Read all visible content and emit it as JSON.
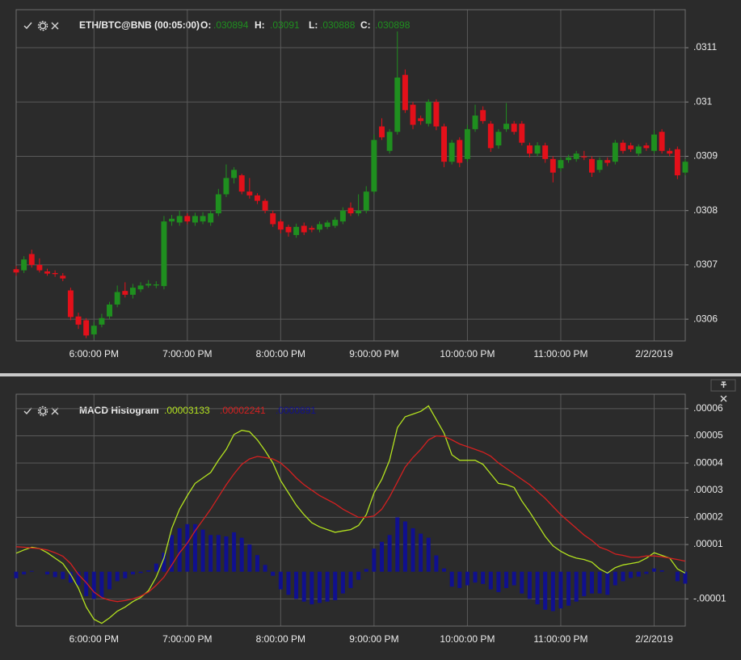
{
  "chart_data": [
    {
      "type": "candlestick",
      "title": "ETH/BTC@BNB (00:05:00)",
      "legend_items": [
        {
          "label": "O:",
          "value": ".030894"
        },
        {
          "label": "H:",
          "value": ".03091"
        },
        {
          "label": "L:",
          "value": ".030888"
        },
        {
          "label": "C:",
          "value": ".030898"
        }
      ],
      "categories": [
        null,
        null,
        null,
        null,
        null,
        null,
        null,
        null,
        null,
        null,
        "6:00:00 PM",
        null,
        null,
        null,
        null,
        null,
        null,
        null,
        null,
        null,
        null,
        null,
        "7:00:00 PM",
        null,
        null,
        null,
        null,
        null,
        null,
        null,
        null,
        null,
        null,
        null,
        "8:00:00 PM",
        null,
        null,
        null,
        null,
        null,
        null,
        null,
        null,
        null,
        null,
        null,
        "9:00:00 PM",
        null,
        null,
        null,
        null,
        null,
        null,
        null,
        null,
        null,
        null,
        null,
        "10:00:00 PM",
        null,
        null,
        null,
        null,
        null,
        null,
        null,
        null,
        null,
        null,
        null,
        "11:00:00 PM",
        null,
        null,
        null,
        null,
        null,
        null,
        null,
        null,
        null,
        null,
        null,
        "2/2/2019",
        null,
        null,
        null,
        null
      ],
      "open": [
        0.030692,
        0.03069,
        0.03072,
        0.0307,
        0.030688,
        0.030685,
        0.03068,
        0.030653,
        0.030605,
        0.030598,
        0.030572,
        0.03059,
        0.030605,
        0.030627,
        0.030652,
        0.030645,
        0.030655,
        0.030662,
        0.030662,
        0.030661,
        0.03078,
        0.030778,
        0.03079,
        0.030778,
        0.03078,
        0.030778,
        0.030795,
        0.03083,
        0.03086,
        0.030865,
        0.030835,
        0.030828,
        0.030818,
        0.030795,
        0.03078,
        0.03077,
        0.030755,
        0.030772,
        0.030768,
        0.030765,
        0.03077,
        0.030772,
        0.03078,
        0.030805,
        0.030795,
        0.0308,
        0.030835,
        0.030955,
        0.03091,
        0.030945,
        0.03105,
        0.030995,
        0.03097,
        0.03096,
        0.031,
        0.030955,
        0.03089,
        0.03093,
        0.030895,
        0.03095,
        0.030985,
        0.03096,
        0.03092,
        0.03095,
        0.03096,
        0.03096,
        0.03092,
        0.030905,
        0.03092,
        0.030895,
        0.030878,
        0.030893,
        0.030895,
        0.0309,
        0.030895,
        0.030875,
        0.030893,
        0.03089,
        0.030925,
        0.03092,
        0.030905,
        0.03092,
        0.03091,
        0.030945,
        0.03091,
        0.030913,
        0.03087
      ],
      "high": [
        0.030698,
        0.030716,
        0.030728,
        0.030712,
        0.030693,
        0.03069,
        0.030685,
        0.030658,
        0.030612,
        0.030602,
        0.030595,
        0.03061,
        0.030632,
        0.030662,
        0.030668,
        0.030665,
        0.030668,
        0.030672,
        0.03067,
        0.03079,
        0.030792,
        0.0308,
        0.030795,
        0.030796,
        0.030797,
        0.0308,
        0.03084,
        0.030885,
        0.03088,
        0.030868,
        0.03086,
        0.030832,
        0.030822,
        0.0308,
        0.030784,
        0.030774,
        0.030776,
        0.030778,
        0.030772,
        0.03078,
        0.030782,
        0.030788,
        0.030806,
        0.030815,
        0.03083,
        0.030845,
        0.03094,
        0.03097,
        0.03095,
        0.03113,
        0.03106,
        0.031,
        0.030975,
        0.031005,
        0.031005,
        0.03096,
        0.03093,
        0.030935,
        0.030958,
        0.030995,
        0.030992,
        0.030965,
        0.03095,
        0.030998,
        0.030965,
        0.030965,
        0.030925,
        0.030926,
        0.030925,
        0.0309,
        0.030898,
        0.030903,
        0.03091,
        0.03091,
        0.0309,
        0.030898,
        0.030898,
        0.03093,
        0.03093,
        0.030925,
        0.030922,
        0.030925,
        0.030948,
        0.03095,
        0.030915,
        0.030918,
        0.030895
      ],
      "low": [
        0.03068,
        0.030685,
        0.030695,
        0.030686,
        0.03068,
        0.030678,
        0.03067,
        0.030598,
        0.030582,
        0.030565,
        0.030565,
        0.030585,
        0.0306,
        0.030622,
        0.03064,
        0.030638,
        0.03065,
        0.030658,
        0.030657,
        0.030655,
        0.030772,
        0.030772,
        0.030775,
        0.030772,
        0.030775,
        0.030772,
        0.03079,
        0.030825,
        0.03085,
        0.03083,
        0.030822,
        0.030812,
        0.030795,
        0.03077,
        0.030758,
        0.030752,
        0.03075,
        0.030755,
        0.03076,
        0.03076,
        0.030766,
        0.030768,
        0.030775,
        0.03079,
        0.03079,
        0.030795,
        0.03083,
        0.03093,
        0.030905,
        0.03094,
        0.03098,
        0.03095,
        0.030958,
        0.030955,
        0.030948,
        0.03088,
        0.030885,
        0.03088,
        0.03089,
        0.030945,
        0.03096,
        0.030908,
        0.030914,
        0.030945,
        0.03094,
        0.03092,
        0.030898,
        0.0309,
        0.030888,
        0.030852,
        0.030872,
        0.030888,
        0.03089,
        0.030893,
        0.030862,
        0.03087,
        0.030882,
        0.030885,
        0.030905,
        0.030908,
        0.0309,
        0.03091,
        0.030905,
        0.030905,
        0.0309,
        0.030858,
        0.030865
      ],
      "close": [
        0.030686,
        0.03071,
        0.0307,
        0.03069,
        0.030684,
        0.030683,
        0.030675,
        0.030604,
        0.03059,
        0.03057,
        0.030588,
        0.030602,
        0.030627,
        0.03065,
        0.030645,
        0.030658,
        0.030662,
        0.030665,
        0.030664,
        0.03078,
        0.030785,
        0.03079,
        0.03078,
        0.03079,
        0.03079,
        0.030795,
        0.03083,
        0.03086,
        0.030875,
        0.030835,
        0.030828,
        0.030818,
        0.0308,
        0.030775,
        0.030765,
        0.03076,
        0.03077,
        0.03076,
        0.030765,
        0.030775,
        0.030778,
        0.030783,
        0.0308,
        0.030795,
        0.0308,
        0.030835,
        0.03093,
        0.030935,
        0.030945,
        0.031045,
        0.030985,
        0.030958,
        0.030965,
        0.031,
        0.030955,
        0.03089,
        0.030925,
        0.030888,
        0.03095,
        0.030975,
        0.030965,
        0.030915,
        0.030945,
        0.03096,
        0.030945,
        0.030925,
        0.030905,
        0.03092,
        0.030895,
        0.03087,
        0.030893,
        0.030898,
        0.030905,
        0.030898,
        0.03087,
        0.030893,
        0.030888,
        0.030925,
        0.03091,
        0.030913,
        0.030918,
        0.030915,
        0.03094,
        0.03091,
        0.030905,
        0.030865,
        0.03089
      ],
      "up_color": "#1f8f1f",
      "down_color": "#e3101a",
      "ylim": [
        0.03056,
        0.03117
      ],
      "yticks": [
        {
          "value": 0.0306,
          "label": ".0306"
        },
        {
          "value": 0.0307,
          "label": ".0307"
        },
        {
          "value": 0.0308,
          "label": ".0308"
        },
        {
          "value": 0.0309,
          "label": ".0309"
        },
        {
          "value": 0.031,
          "label": ".031"
        },
        {
          "value": 0.0311,
          "label": ".0311"
        }
      ],
      "grid": true
    },
    {
      "type": "macd",
      "title": "MACD Histogram",
      "categories": [
        null,
        null,
        null,
        null,
        null,
        null,
        null,
        null,
        null,
        null,
        "6:00:00 PM",
        null,
        null,
        null,
        null,
        null,
        null,
        null,
        null,
        null,
        null,
        null,
        "7:00:00 PM",
        null,
        null,
        null,
        null,
        null,
        null,
        null,
        null,
        null,
        null,
        null,
        "8:00:00 PM",
        null,
        null,
        null,
        null,
        null,
        null,
        null,
        null,
        null,
        null,
        null,
        "9:00:00 PM",
        null,
        null,
        null,
        null,
        null,
        null,
        null,
        null,
        null,
        null,
        null,
        "10:00:00 PM",
        null,
        null,
        null,
        null,
        null,
        null,
        null,
        null,
        null,
        null,
        null,
        "11:00:00 PM",
        null,
        null,
        null,
        null,
        null,
        null,
        null,
        null,
        null,
        null,
        null,
        "2/2/2019",
        null,
        null,
        null,
        null
      ],
      "series": [
        {
          "name": ".00003133",
          "color": "#b3e21f",
          "kind": "line",
          "values": [
            6.8e-06,
            8e-06,
            9e-06,
            8.5e-06,
            7e-06,
            5e-06,
            3e-06,
            -1e-06,
            -6e-06,
            -1.3e-05,
            -1.75e-05,
            -1.9e-05,
            -1.7e-05,
            -1.45e-05,
            -1.3e-05,
            -1.1e-05,
            -9.5e-06,
            -7e-06,
            -2e-06,
            5e-06,
            1.6e-05,
            2.3e-05,
            2.8e-05,
            3.25e-05,
            3.45e-05,
            3.65e-05,
            4.1e-05,
            4.5e-05,
            5.05e-05,
            5.2e-05,
            5.15e-05,
            4.85e-05,
            4.45e-05,
            4e-05,
            3.35e-05,
            2.9e-05,
            2.45e-05,
            2.1e-05,
            1.8e-05,
            1.65e-05,
            1.55e-05,
            1.45e-05,
            1.5e-05,
            1.55e-05,
            1.7e-05,
            2.1e-05,
            2.9e-05,
            3.4e-05,
            4.1e-05,
            5.3e-05,
            5.7e-05,
            5.8e-05,
            5.9e-05,
            6.1e-05,
            5.6e-05,
            5.1e-05,
            4.3e-05,
            4.1e-05,
            4.1e-05,
            4.1e-05,
            3.95e-05,
            3.6e-05,
            3.25e-05,
            3.2e-05,
            3.1e-05,
            2.6e-05,
            2.2e-05,
            1.75e-05,
            1.3e-05,
            9.5e-06,
            7.5e-06,
            6e-06,
            5e-06,
            4.5e-06,
            3.5e-06,
            1e-06,
            -5e-07,
            1.5e-06,
            2.5e-06,
            3e-06,
            3.5e-06,
            5e-06,
            7e-06,
            6e-06,
            5e-06,
            1e-06,
            -5e-07
          ]
        },
        {
          "name": ".00002241",
          "color": "#d42020",
          "kind": "line",
          "values": [
            9.2e-06,
            9e-06,
            8.7e-06,
            8.5e-06,
            8e-06,
            7e-06,
            5.7e-06,
            3e-06,
            -1e-06,
            -4e-06,
            -7.5e-06,
            -9.5e-06,
            -1.05e-05,
            -1.1e-05,
            -1.06e-05,
            -1e-05,
            -9e-06,
            -7.5e-06,
            -5e-06,
            -2e-06,
            2.5e-06,
            7e-06,
            1.05e-05,
            1.5e-05,
            1.9e-05,
            2.3e-05,
            2.75e-05,
            3.2e-05,
            3.6e-05,
            3.95e-05,
            4.15e-05,
            4.24e-05,
            4.2e-05,
            4.15e-05,
            4e-05,
            3.75e-05,
            3.45e-05,
            3.2e-05,
            3e-05,
            2.8e-05,
            2.65e-05,
            2.5e-05,
            2.3e-05,
            2.15e-05,
            2e-05,
            2e-05,
            2.05e-05,
            2.3e-05,
            2.75e-05,
            3.3e-05,
            3.85e-05,
            4.2e-05,
            4.5e-05,
            4.85e-05,
            5e-05,
            4.98e-05,
            4.85e-05,
            4.7e-05,
            4.6e-05,
            4.5e-05,
            4.4e-05,
            4.25e-05,
            4e-05,
            3.8e-05,
            3.6e-05,
            3.4e-05,
            3.2e-05,
            2.95e-05,
            2.7e-05,
            2.4e-05,
            2.1e-05,
            1.85e-05,
            1.6e-05,
            1.35e-05,
            1.15e-05,
            9e-06,
            8e-06,
            6.5e-06,
            6e-06,
            5.3e-06,
            5.3e-06,
            5.8e-06,
            5.8e-06,
            5.5e-06,
            5e-06,
            4.5e-06,
            3.9e-06
          ]
        },
        {
          "name": ".0000891",
          "color": "#10108e",
          "kind": "bar",
          "values": [
            -2.4e-06,
            -1e-06,
            3e-07,
            0,
            -1e-06,
            -2e-06,
            -2.7e-06,
            -4e-06,
            -5e-06,
            -9e-06,
            -1e-05,
            -9.5e-06,
            -6.5e-06,
            -3.5e-06,
            -2.4e-06,
            -1e-06,
            -5e-07,
            5e-07,
            3e-06,
            7e-06,
            1.35e-05,
            1.6e-05,
            1.75e-05,
            1.75e-05,
            1.55e-05,
            1.35e-05,
            1.35e-05,
            1.3e-05,
            1.45e-05,
            1.25e-05,
            1e-05,
            6.1e-06,
            2.5e-06,
            -1.5e-06,
            -6.5e-06,
            -8.5e-06,
            -1e-05,
            -1.1e-05,
            -1.2e-05,
            -1.15e-05,
            -1.1e-05,
            -1.05e-05,
            -8e-06,
            -6e-06,
            -3e-06,
            1e-06,
            8.5e-06,
            1.1e-05,
            1.35e-05,
            2e-05,
            1.85e-05,
            1.6e-05,
            1.4e-05,
            1.25e-05,
            6e-06,
            1.2e-06,
            -5.5e-06,
            -6e-06,
            -5e-06,
            -4e-06,
            -4.5e-06,
            -6.5e-06,
            -7.5e-06,
            -6e-06,
            -5e-06,
            -8e-06,
            -1e-05,
            -1.2e-05,
            -1.4e-05,
            -1.45e-05,
            -1.35e-05,
            -1.25e-05,
            -1.1e-05,
            -9e-06,
            -8e-06,
            -8e-06,
            -8.5e-06,
            -5e-06,
            -3.5e-06,
            -2.3e-06,
            -1.8e-06,
            -8e-07,
            1.2e-06,
            5e-07,
            0,
            -3.5e-06,
            -4.4e-06
          ]
        }
      ],
      "ylim": [
        -2e-05,
        6.53e-05
      ],
      "yticks": [
        {
          "value": -1e-05,
          "label": "-.00001"
        },
        {
          "value": 1e-05,
          "label": ".00001"
        },
        {
          "value": 2e-05,
          "label": ".00002"
        },
        {
          "value": 3e-05,
          "label": ".00003"
        },
        {
          "value": 4e-05,
          "label": ".00004"
        },
        {
          "value": 5e-05,
          "label": ".00005"
        },
        {
          "value": 6e-05,
          "label": ".00006"
        }
      ],
      "grid": true
    }
  ]
}
